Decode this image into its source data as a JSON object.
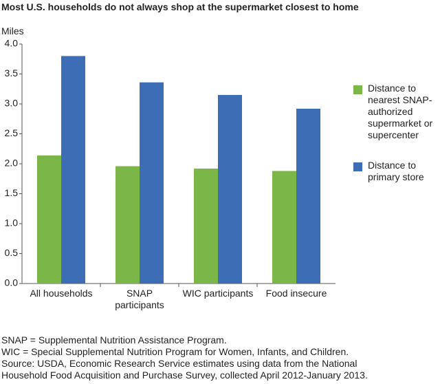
{
  "chart_data": {
    "type": "bar",
    "title": "Most U.S. households do not always shop at the supermarket closest to home",
    "y_label": "Miles",
    "categories": [
      "All households",
      "SNAP participants",
      "WIC participants",
      "Food insecure"
    ],
    "series": [
      {
        "name": "Distance to nearest SNAP-authorized supermarket or supercenter",
        "color": "#7ab648",
        "values": [
          2.14,
          1.96,
          1.92,
          1.88
        ]
      },
      {
        "name": "Distance to primary store",
        "color": "#3d6db5",
        "values": [
          3.8,
          3.36,
          3.15,
          2.92
        ]
      }
    ],
    "ylim": [
      0,
      4
    ],
    "yticks": [
      {
        "value": 0,
        "label": "0.0"
      },
      0.5,
      {
        "value": 1,
        "label": "1.0"
      },
      1.5,
      {
        "value": 2,
        "label": "2.0"
      },
      2.5,
      {
        "value": 3,
        "label": "3.0"
      },
      3.5,
      {
        "value": 4,
        "label": "4.0"
      }
    ],
    "notes": [
      "SNAP = Supplemental Nutrition Assistance Program.",
      "WIC = Special Supplemental Nutrition Program for Women, Infants, and Children.",
      "Source:  USDA, Economic Research Service estimates using data from the National",
      "Household Food Acquisition and Purchase Survey, collected April 2012-January 2013."
    ]
  }
}
